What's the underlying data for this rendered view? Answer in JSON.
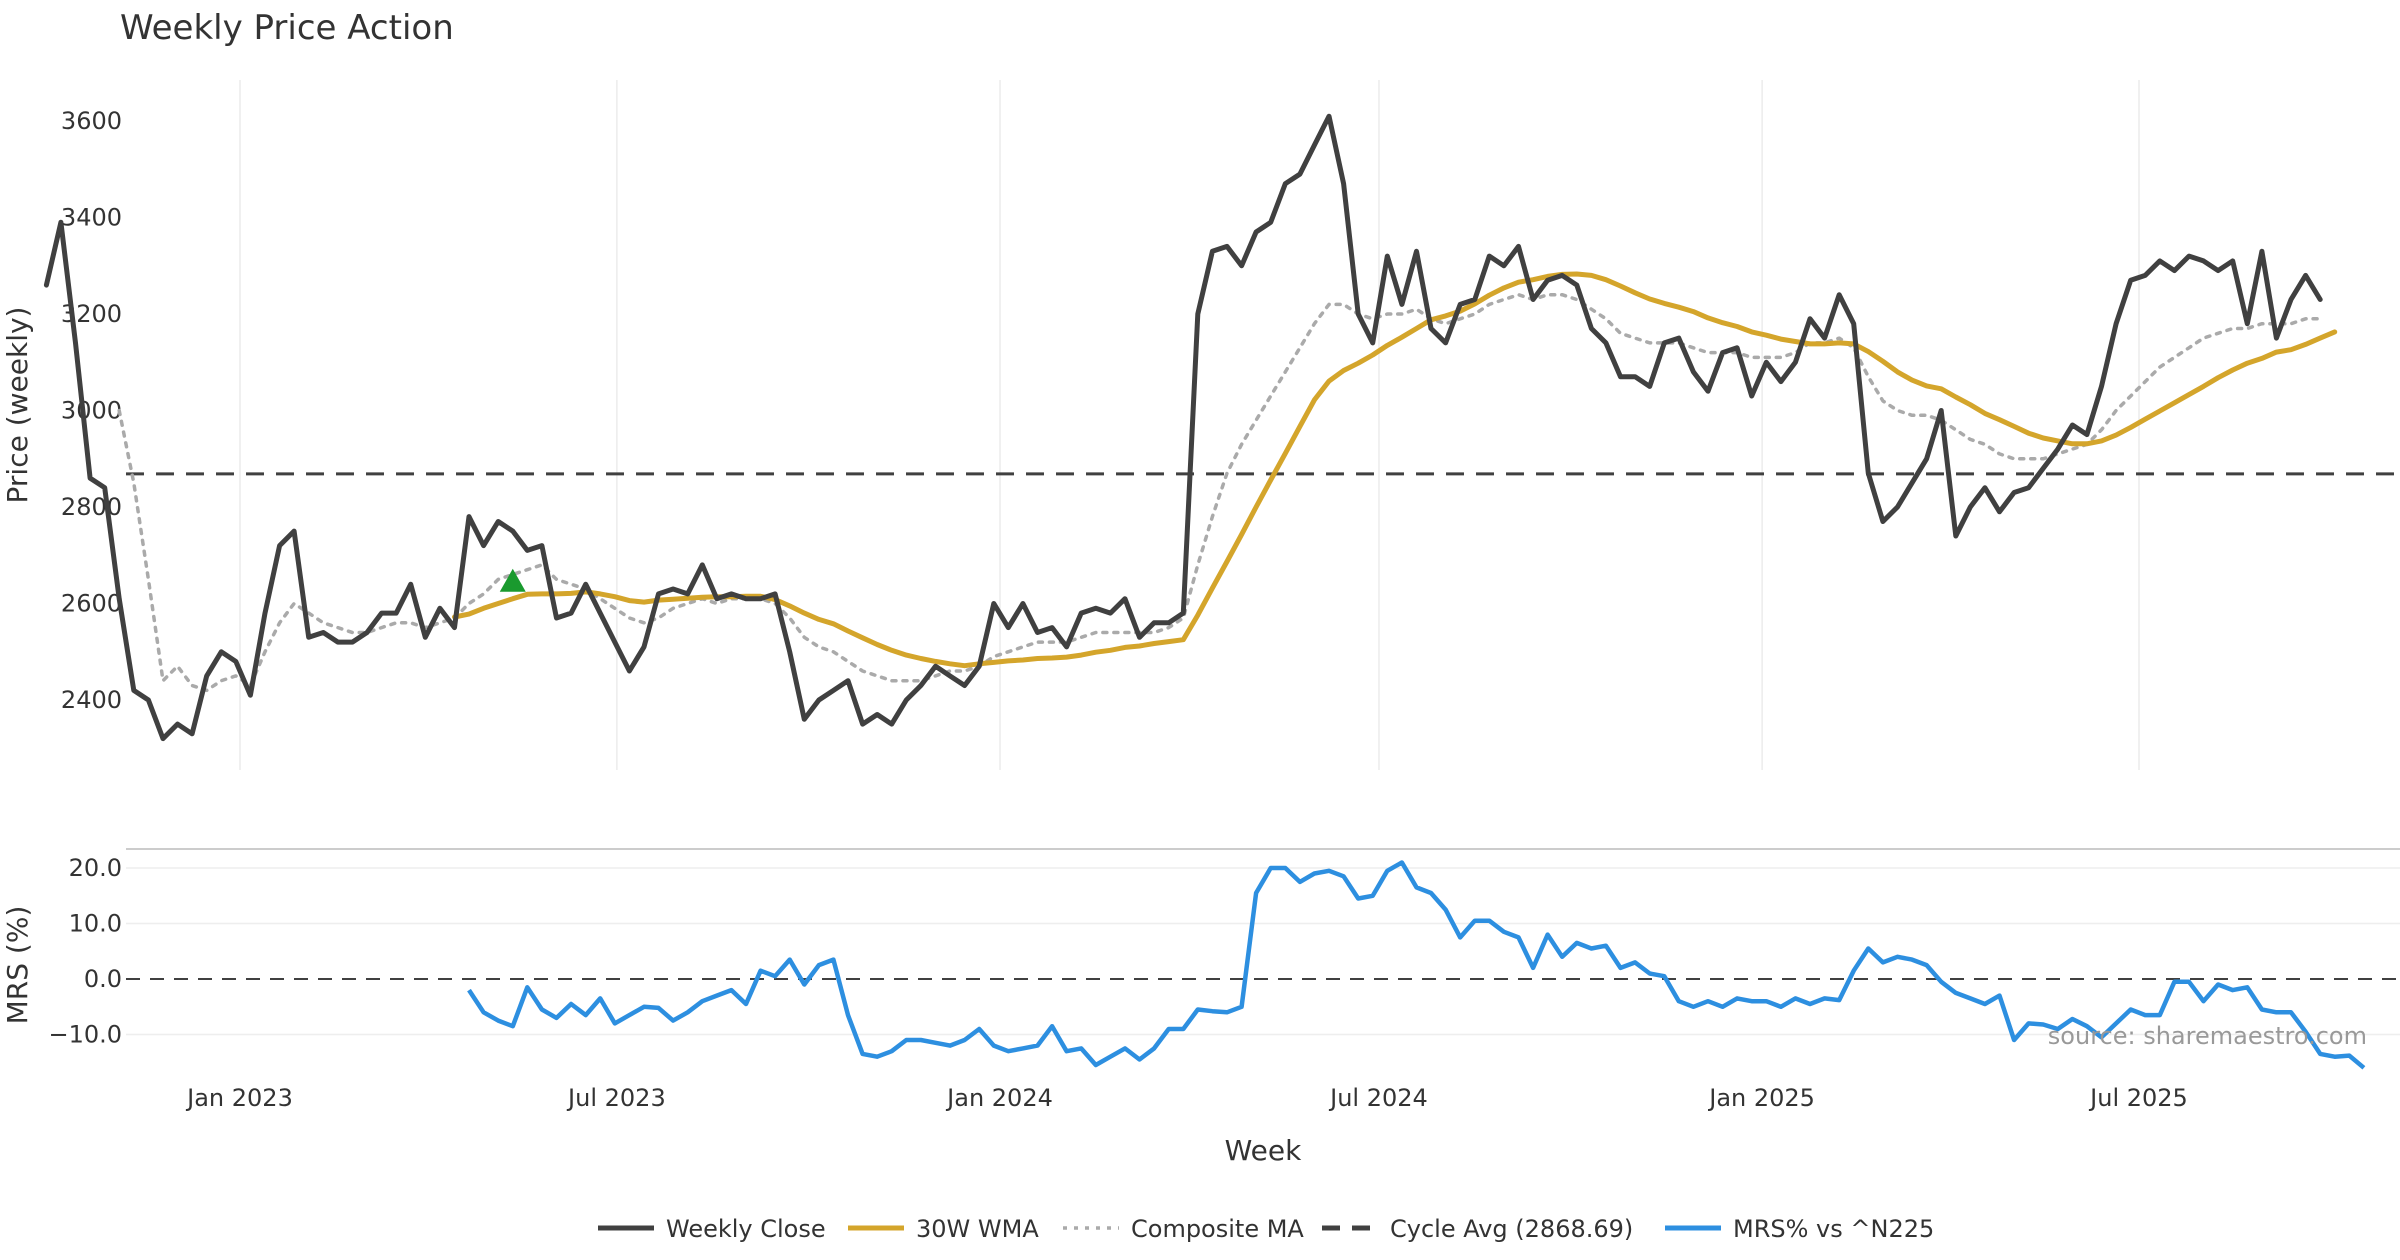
{
  "chart_data": [
    {
      "type": "line",
      "title": "Weekly Price Action",
      "ylabel": "Price (weekly)",
      "ylim": [
        2280,
        3680
      ],
      "yticks": [
        2400,
        2600,
        2800,
        3000,
        3200,
        3400,
        3600
      ],
      "x_dates": [
        "2022-09-30",
        "2022-10-07",
        "2022-10-14",
        "2022-10-21",
        "2022-10-28",
        "2022-11-04",
        "2022-11-11",
        "2022-11-18",
        "2022-11-25",
        "2022-12-02",
        "2022-12-09",
        "2022-12-16",
        "2022-12-23",
        "2022-12-30",
        "2023-01-06",
        "2023-01-13",
        "2023-01-20",
        "2023-01-27",
        "2023-02-03",
        "2023-02-10",
        "2023-02-17",
        "2023-02-24",
        "2023-03-03",
        "2023-03-10",
        "2023-03-17",
        "2023-03-24",
        "2023-03-31",
        "2023-04-07",
        "2023-04-14",
        "2023-04-21",
        "2023-04-28",
        "2023-05-05",
        "2023-05-12",
        "2023-05-19",
        "2023-05-26",
        "2023-06-02",
        "2023-06-09",
        "2023-06-16",
        "2023-06-23",
        "2023-06-30",
        "2023-07-07",
        "2023-07-14",
        "2023-07-21",
        "2023-07-28",
        "2023-08-04",
        "2023-08-11",
        "2023-08-18",
        "2023-08-25",
        "2023-09-01",
        "2023-09-08",
        "2023-09-15",
        "2023-09-22",
        "2023-09-29",
        "2023-10-06",
        "2023-10-13",
        "2023-10-20",
        "2023-10-27",
        "2023-11-03",
        "2023-11-10",
        "2023-11-17",
        "2023-11-24",
        "2023-12-01",
        "2023-12-08",
        "2023-12-15",
        "2023-12-22",
        "2023-12-29",
        "2024-01-05",
        "2024-01-12",
        "2024-01-19",
        "2024-01-26",
        "2024-02-02",
        "2024-02-09",
        "2024-02-16",
        "2024-02-23",
        "2024-03-01",
        "2024-03-08",
        "2024-03-15",
        "2024-03-22",
        "2024-03-29",
        "2024-04-05",
        "2024-04-12",
        "2024-04-19",
        "2024-04-26",
        "2024-05-03",
        "2024-05-10",
        "2024-05-17",
        "2024-05-24",
        "2024-05-31",
        "2024-06-07",
        "2024-06-14",
        "2024-06-21",
        "2024-06-28",
        "2024-07-05",
        "2024-07-12",
        "2024-07-19",
        "2024-07-26",
        "2024-08-02",
        "2024-08-09",
        "2024-08-16",
        "2024-08-23",
        "2024-08-30",
        "2024-09-06",
        "2024-09-13",
        "2024-09-20",
        "2024-09-27",
        "2024-10-04",
        "2024-10-11",
        "2024-10-18",
        "2024-10-25",
        "2024-11-01",
        "2024-11-08",
        "2024-11-15",
        "2024-11-22",
        "2024-11-29",
        "2024-12-06",
        "2024-12-13",
        "2024-12-20",
        "2024-12-27",
        "2025-01-03",
        "2025-01-10",
        "2025-01-17",
        "2025-01-24",
        "2025-01-31",
        "2025-02-07",
        "2025-02-14",
        "2025-02-21",
        "2025-02-28",
        "2025-03-07",
        "2025-03-14",
        "2025-03-21",
        "2025-03-28",
        "2025-04-04",
        "2025-04-11",
        "2025-04-18",
        "2025-04-25",
        "2025-05-02",
        "2025-05-09",
        "2025-05-16",
        "2025-05-23",
        "2025-05-30",
        "2025-06-06",
        "2025-06-13",
        "2025-06-20",
        "2025-06-27",
        "2025-07-04",
        "2025-07-11",
        "2025-07-18",
        "2025-07-25",
        "2025-08-01",
        "2025-08-08",
        "2025-08-15",
        "2025-08-22",
        "2025-08-29",
        "2025-09-05",
        "2025-09-12",
        "2025-09-19",
        "2025-09-26",
        "2025-10-03",
        "2025-10-10",
        "2025-10-17",
        "2025-10-24"
      ],
      "series": [
        {
          "name": "Weekly Close",
          "color": "#404040",
          "style": "solid",
          "values": [
            3260,
            3390,
            3140,
            2860,
            2840,
            2610,
            2420,
            2400,
            2320,
            2350,
            2330,
            2450,
            2500,
            2480,
            2410,
            2580,
            2720,
            2750,
            2530,
            2540,
            2520,
            2520,
            2540,
            2580,
            2580,
            2640,
            2530,
            2590,
            2550,
            2780,
            2720,
            2770,
            2750,
            2710,
            2720,
            2570,
            2580,
            2640,
            2580,
            2520,
            2460,
            2510,
            2620,
            2630,
            2620,
            2680,
            2610,
            2620,
            2610,
            2610,
            2620,
            2500,
            2360,
            2400,
            2420,
            2440,
            2350,
            2370,
            2350,
            2400,
            2430,
            2470,
            2450,
            2430,
            2470,
            2600,
            2550,
            2600,
            2540,
            2550,
            2510,
            2580,
            2590,
            2580,
            2610,
            2530,
            2560,
            2560,
            2580,
            3200,
            3330,
            3340,
            3300,
            3370,
            3390,
            3470,
            3490,
            3550,
            3610,
            3470,
            3200,
            3140,
            3320,
            3220,
            3330,
            3170,
            3140,
            3220,
            3230,
            3320,
            3300,
            3340,
            3230,
            3270,
            3280,
            3260,
            3170,
            3140,
            3070,
            3070,
            3050,
            3140,
            3150,
            3080,
            3040,
            3120,
            3130,
            3030,
            3100,
            3060,
            3100,
            3190,
            3150,
            3240,
            3180,
            2870,
            2770,
            2800,
            2850,
            2900,
            3000,
            2740,
            2800,
            2840,
            2790,
            2830,
            2840,
            2880,
            2920,
            2970,
            2950,
            3050,
            3180,
            3270,
            3280,
            3310,
            3290,
            3320,
            3310,
            3290,
            3310,
            3180,
            3330,
            3150,
            3230,
            3280,
            3230
          ]
        },
        {
          "name": "30W WMA",
          "color": "#D4A52B",
          "style": "solid",
          "values": [
            null,
            null,
            null,
            null,
            null,
            null,
            null,
            null,
            null,
            null,
            null,
            null,
            null,
            null,
            null,
            null,
            null,
            null,
            null,
            null,
            null,
            null,
            null,
            null,
            null,
            null,
            null,
            null,
            2572,
            2578,
            2590,
            2600,
            2610,
            2619,
            2620,
            2620,
            2621,
            2624,
            2620,
            2614,
            2606,
            2603,
            2607,
            2609,
            2611,
            2613,
            2614,
            2614,
            2615,
            2615,
            2608,
            2595,
            2580,
            2567,
            2558,
            2543,
            2529,
            2515,
            2503,
            2493,
            2486,
            2480,
            2475,
            2471,
            2475,
            2478,
            2481,
            2483,
            2486,
            2487,
            2489,
            2493,
            2499,
            2503,
            2509,
            2512,
            2517,
            2521,
            2525,
            2576,
            2632,
            2687,
            2743,
            2800,
            2856,
            2911,
            2967,
            3022,
            3061,
            3083,
            3098,
            3115,
            3135,
            3152,
            3170,
            3188,
            3196,
            3206,
            3221,
            3239,
            3254,
            3266,
            3271,
            3278,
            3282,
            3283,
            3280,
            3271,
            3258,
            3244,
            3231,
            3222,
            3214,
            3205,
            3192,
            3182,
            3174,
            3163,
            3156,
            3148,
            3143,
            3138,
            3138,
            3140,
            3138,
            3122,
            3102,
            3080,
            3063,
            3051,
            3045,
            3028,
            3012,
            2994,
            2981,
            2967,
            2953,
            2943,
            2937,
            2931,
            2931,
            2937,
            2949,
            2965,
            2982,
            2999,
            3016,
            3033,
            3050,
            3068,
            3084,
            3098,
            3108,
            3121,
            3126,
            3137,
            3150,
            3163
          ]
        },
        {
          "name": "Composite MA",
          "color": "#AAAAAA",
          "style": "dotted",
          "values": [
            null,
            null,
            null,
            null,
            null,
            3000,
            2850,
            2650,
            2440,
            2470,
            2430,
            2420,
            2440,
            2450,
            2430,
            2500,
            2560,
            2600,
            2580,
            2560,
            2550,
            2540,
            2540,
            2550,
            2560,
            2560,
            2550,
            2560,
            2570,
            2600,
            2620,
            2650,
            2660,
            2670,
            2680,
            2650,
            2640,
            2630,
            2610,
            2590,
            2570,
            2560,
            2570,
            2590,
            2600,
            2610,
            2600,
            2610,
            2610,
            2610,
            2600,
            2570,
            2530,
            2510,
            2500,
            2480,
            2460,
            2450,
            2440,
            2440,
            2440,
            2450,
            2460,
            2460,
            2470,
            2490,
            2500,
            2510,
            2520,
            2520,
            2520,
            2530,
            2540,
            2540,
            2540,
            2540,
            2540,
            2550,
            2570,
            2680,
            2780,
            2870,
            2930,
            2980,
            3030,
            3080,
            3130,
            3180,
            3220,
            3220,
            3200,
            3190,
            3200,
            3200,
            3210,
            3190,
            3180,
            3190,
            3200,
            3220,
            3230,
            3240,
            3230,
            3240,
            3240,
            3230,
            3210,
            3190,
            3160,
            3150,
            3140,
            3140,
            3140,
            3130,
            3120,
            3120,
            3120,
            3110,
            3110,
            3110,
            3120,
            3140,
            3140,
            3150,
            3130,
            3070,
            3020,
            3000,
            2990,
            2990,
            2980,
            2960,
            2940,
            2930,
            2910,
            2900,
            2900,
            2900,
            2910,
            2920,
            2930,
            2960,
            3000,
            3030,
            3060,
            3090,
            3110,
            3130,
            3150,
            3160,
            3170,
            3170,
            3180,
            3180,
            3180,
            3190,
            3190
          ]
        }
      ],
      "reference_lines": [
        {
          "name": "Cycle Avg (2868.69)",
          "value": 2868.69,
          "color": "#404040",
          "style": "dashed"
        }
      ],
      "markers": [
        {
          "type": "triangle-up",
          "date": "2023-05-12",
          "value": 2645,
          "color": "#1A9A2E"
        }
      ]
    },
    {
      "type": "line",
      "ylabel": "MRS (%)",
      "xlabel": "Week",
      "ylim": [
        -16,
        24
      ],
      "yticks": [
        20.0,
        10.0,
        0.0,
        -10.0
      ],
      "ytick_labels": [
        "20.0",
        "10.0",
        "0.0",
        "−10.0"
      ],
      "xticks": [
        {
          "label": "Jan 2023",
          "date": "2023-01-01"
        },
        {
          "label": "Jul 2023",
          "date": "2023-07-01"
        },
        {
          "label": "Jan 2024",
          "date": "2024-01-01"
        },
        {
          "label": "Jul 2024",
          "date": "2024-07-01"
        },
        {
          "label": "Jan 2025",
          "date": "2025-01-01"
        },
        {
          "label": "Jul 2025",
          "date": "2025-07-01"
        }
      ],
      "reference_lines": [
        {
          "value": 0,
          "color": "#404040",
          "style": "dashed"
        }
      ],
      "series": [
        {
          "name": "MRS% vs ^N225",
          "color": "#2D8FE0",
          "style": "solid",
          "start_date": "2023-04-21",
          "values": [
            -2,
            -6,
            -7.5,
            -8.5,
            -1.5,
            -5.5,
            -7,
            -4.5,
            -6.5,
            -3.5,
            -8,
            -6.5,
            -5,
            -5.2,
            -7.5,
            -6,
            -4,
            -3,
            -2,
            -4.5,
            1.5,
            0.5,
            3.5,
            -1,
            2.5,
            3.5,
            -6.5,
            -13.5,
            -14,
            -13,
            -11,
            -11,
            -11.5,
            -12,
            -11,
            -9,
            -12,
            -13,
            -12.5,
            -12,
            -8.5,
            -13,
            -12.5,
            -15.5,
            -14,
            -12.5,
            -14.5,
            -12.5,
            -9,
            -9,
            -5.5,
            -5.8,
            -6,
            -5,
            15.5,
            20,
            20,
            17.5,
            19,
            19.5,
            18.5,
            14.5,
            15,
            19.5,
            21,
            16.5,
            15.5,
            12.5,
            7.5,
            10.5,
            10.5,
            8.5,
            7.5,
            2,
            8,
            4,
            6.5,
            5.5,
            6,
            2,
            3,
            1,
            0.5,
            -4,
            -5,
            -4,
            -5,
            -3.5,
            -4,
            -4,
            -5,
            -3.5,
            -4.5,
            -3.5,
            -3.8,
            1.5,
            5.5,
            3,
            4,
            3.5,
            2.5,
            -0.5,
            -2.5,
            -3.5,
            -4.5,
            -3,
            -11,
            -8,
            -8.2,
            -9,
            -7.2,
            -8.5,
            -10.5,
            -8,
            -5.5,
            -6.5,
            -6.5,
            -0.5,
            -0.5,
            -4,
            -1,
            -2,
            -1.5,
            -5.5,
            -6,
            -6,
            -9.5,
            -13.5,
            -14,
            -13.8,
            -16
          ]
        }
      ]
    }
  ],
  "legend": [
    {
      "label": "Weekly Close",
      "color": "#404040",
      "style": "solid"
    },
    {
      "label": "30W WMA",
      "color": "#D4A52B",
      "style": "solid"
    },
    {
      "label": "Composite MA",
      "color": "#AAAAAA",
      "style": "dotted"
    },
    {
      "label": "Cycle Avg (2868.69)",
      "color": "#404040",
      "style": "dashed"
    },
    {
      "label": "MRS% vs ^N225",
      "color": "#2D8FE0",
      "style": "solid"
    }
  ],
  "source_text": "source: sharemaestro.com"
}
